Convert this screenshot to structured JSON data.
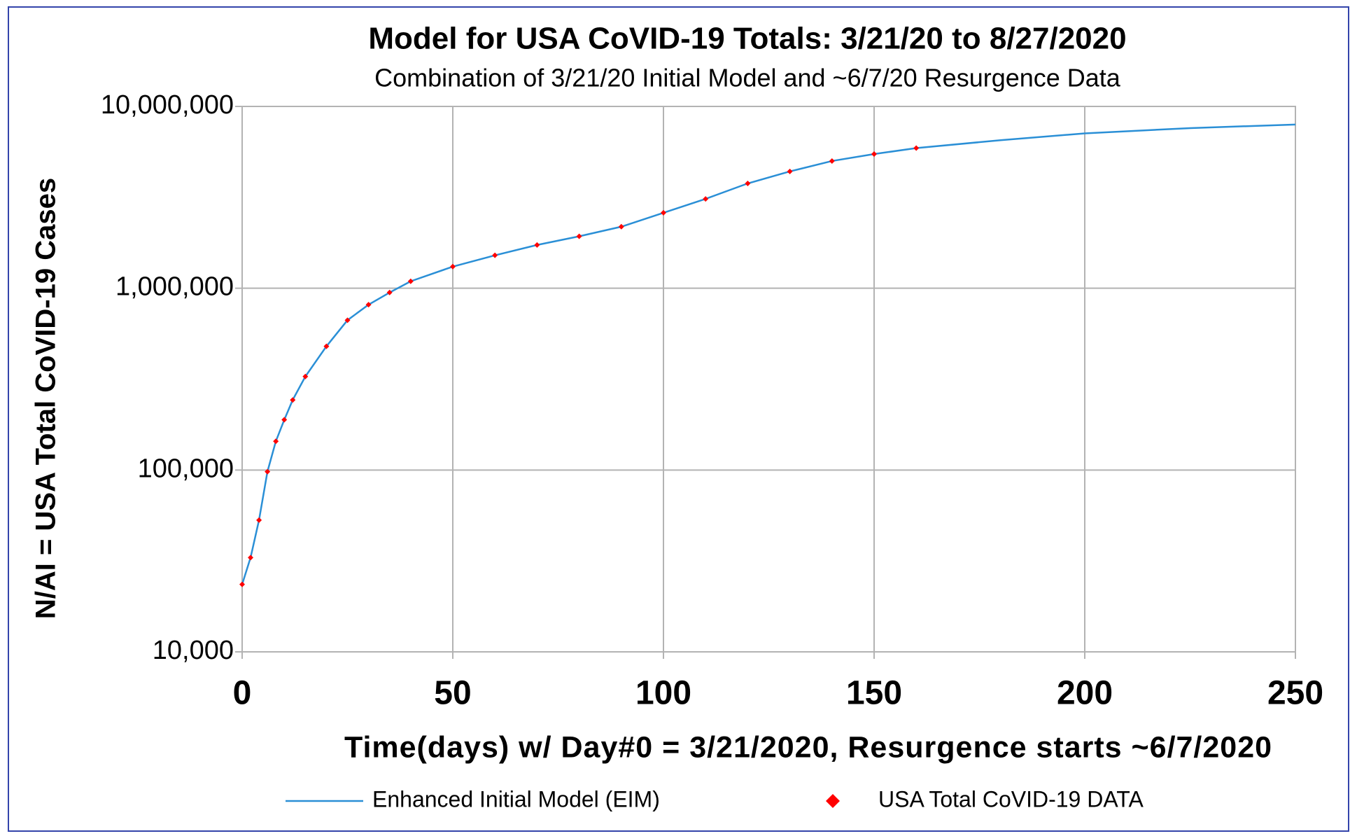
{
  "chart_data": {
    "type": "line",
    "title": "Model for USA CoVID-19 Totals:  3/21/20 to 8/27/2020",
    "subtitle": "Combination of 3/21/20 Initial Model and ~6/7/20 Resurgence Data",
    "x_label": "Time(days) w/ Day#0 = 3/21/2020, Resurgence starts ~6/7/2020",
    "y_label": "N/AI = USA Total CoVID-19 Cases",
    "xlim": [
      0,
      250
    ],
    "xticks": [
      0,
      50,
      100,
      150,
      200,
      250
    ],
    "ylim": [
      10000,
      10000000
    ],
    "y_scale": "log",
    "yticks": [
      {
        "value": 10000,
        "label": "10,000"
      },
      {
        "value": 100000,
        "label": "100,000"
      },
      {
        "value": 1000000,
        "label": "1,000,000"
      },
      {
        "value": 10000000,
        "label": "10,000,000"
      }
    ],
    "grid": true,
    "series": [
      {
        "name": "Enhanced Initial Model (EIM)",
        "color": "#2a8fd6",
        "style": "line",
        "x": [
          0,
          2,
          4,
          6,
          8,
          10,
          12,
          15,
          20,
          25,
          30,
          35,
          40,
          50,
          60,
          70,
          80,
          90,
          100,
          110,
          120,
          130,
          140,
          150,
          160,
          180,
          200,
          225,
          250
        ],
        "values": [
          23500,
          33000,
          53000,
          98000,
          144000,
          189000,
          243000,
          327000,
          479000,
          667000,
          812000,
          947000,
          1092000,
          1315000,
          1517000,
          1730000,
          1930000,
          2180000,
          2600000,
          3100000,
          3770000,
          4390000,
          5010000,
          5470000,
          5900000,
          6520000,
          7110000,
          7600000,
          7950000
        ]
      },
      {
        "name": "USA  Total CoVID-19  DATA",
        "color": "#ff0000",
        "style": "points",
        "x": [
          0,
          2,
          4,
          6,
          8,
          10,
          12,
          15,
          20,
          25,
          30,
          35,
          40,
          50,
          60,
          70,
          80,
          90,
          100,
          110,
          120,
          130,
          140,
          150,
          160
        ],
        "values": [
          23500,
          33000,
          53000,
          98000,
          144000,
          189000,
          243000,
          327000,
          479000,
          667000,
          812000,
          947000,
          1092000,
          1315000,
          1517000,
          1730000,
          1930000,
          2180000,
          2600000,
          3100000,
          3770000,
          4390000,
          5010000,
          5470000,
          5900000
        ]
      }
    ]
  }
}
